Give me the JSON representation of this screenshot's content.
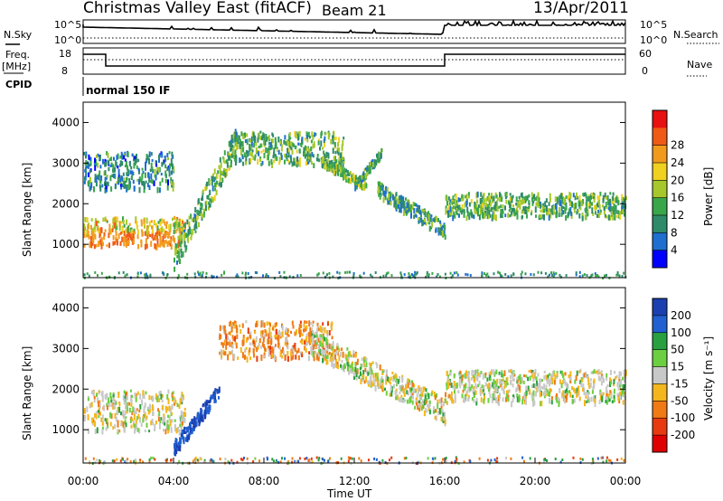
{
  "header": {
    "title": "Christmas Valley East (fitACF)",
    "beam": "Beam 21",
    "date": "13/Apr/2011"
  },
  "labels": {
    "nsky": "N.Sky",
    "freq": "Freq.",
    "mhz": "[MHz]",
    "cpid": "CPID",
    "nsearch": "N.Search",
    "nave": "Nave",
    "cpid_value": "normal 150 IF",
    "y_power_panel": "Slant Range [km]",
    "y_vel_panel": "Slant Range [km]",
    "x_axis": "Time UT",
    "power_cbar_label": "Power [dB]",
    "vel_cbar_label": "Velocity [m s⁻¹]",
    "nsky_top": "10^5",
    "nsky_bot": "10^0",
    "nsearch_top": "10^5",
    "nsearch_bot": "10^0",
    "freq_top": "18",
    "freq_bot": "8",
    "nave_top": "60",
    "nave_bot": "0"
  },
  "chart_data": [
    {
      "type": "heatmap",
      "name": "Power",
      "xlabel": "Time UT",
      "ylabel": "Slant Range [km]",
      "x_ticks": [
        "00:00",
        "04:00",
        "08:00",
        "12:00",
        "16:00",
        "20:00",
        "00:00"
      ],
      "x_range_hours": [
        0,
        24
      ],
      "y_ticks": [
        1000,
        2000,
        3000,
        4000
      ],
      "y_range_km": [
        180,
        4500
      ],
      "colorbar": {
        "label": "Power [dB]",
        "ticks": [
          4,
          8,
          12,
          16,
          20,
          24,
          28
        ],
        "colors": [
          "#0000ff",
          "#1e6fd0",
          "#2f8a6a",
          "#3aa64a",
          "#a6c82c",
          "#f0d020",
          "#f29a1c",
          "#ef5a16",
          "#e81010"
        ]
      },
      "features": [
        {
          "segment": "near-range band",
          "time_hours": [
            0,
            4.5
          ],
          "range_km": [
            1000,
            1700
          ],
          "power_db": 22
        },
        {
          "segment": "rising band",
          "time_hours": [
            4,
            6.8
          ],
          "range_km": [
            700,
            3600
          ],
          "power_db": 14
        },
        {
          "segment": "upper band",
          "time_hours": [
            6.5,
            11.5
          ],
          "range_km": [
            3000,
            3800
          ],
          "power_db": 14
        },
        {
          "segment": "descending band",
          "time_hours": [
            10.5,
            12.5
          ],
          "range_km": [
            2500,
            3100
          ],
          "power_db": 16
        },
        {
          "segment": "second rise",
          "time_hours": [
            12,
            13.2
          ],
          "range_km": [
            2500,
            3300
          ],
          "power_db": 12
        },
        {
          "segment": "descending tail",
          "time_hours": [
            13,
            16
          ],
          "range_km": [
            1400,
            2400
          ],
          "power_db": 12
        },
        {
          "segment": "evening band",
          "time_hours": [
            16,
            24
          ],
          "range_km": [
            1700,
            2300
          ],
          "power_db": 14
        },
        {
          "segment": "scattered upper echoes",
          "time_hours": [
            0,
            4
          ],
          "range_km": [
            2400,
            3300
          ],
          "power_db": 10
        }
      ]
    },
    {
      "type": "heatmap",
      "name": "Velocity",
      "xlabel": "Time UT",
      "ylabel": "Slant Range [km]",
      "x_ticks": [
        "00:00",
        "04:00",
        "08:00",
        "12:00",
        "16:00",
        "20:00",
        "00:00"
      ],
      "x_range_hours": [
        0,
        24
      ],
      "y_ticks": [
        1000,
        2000,
        3000,
        4000
      ],
      "y_range_km": [
        180,
        4500
      ],
      "colorbar": {
        "label": "Velocity [m s⁻¹]",
        "ticks": [
          200,
          100,
          50,
          15,
          -15,
          -50,
          -100,
          -200
        ],
        "colors": [
          "#1a3fb0",
          "#2060d0",
          "#28a040",
          "#6ccf40",
          "#c8c8c8",
          "#f3b61c",
          "#f07a14",
          "#e83a10",
          "#e00000"
        ]
      },
      "features": [
        {
          "segment": "near-range band",
          "time_hours": [
            0,
            4.5
          ],
          "range_km": [
            1000,
            2000
          ],
          "velocity": 0
        },
        {
          "segment": "rising band",
          "time_hours": [
            4,
            6
          ],
          "range_km": [
            600,
            2000
          ],
          "velocity": 150
        },
        {
          "segment": "upper band",
          "time_hours": [
            6,
            11
          ],
          "range_km": [
            2800,
            3700
          ],
          "velocity": -40
        },
        {
          "segment": "descending tail",
          "time_hours": [
            10,
            16
          ],
          "range_km": [
            1500,
            3200
          ],
          "velocity": 0
        },
        {
          "segment": "evening band",
          "time_hours": [
            16,
            24
          ],
          "range_km": [
            1700,
            2500
          ],
          "velocity": 0
        }
      ]
    }
  ]
}
